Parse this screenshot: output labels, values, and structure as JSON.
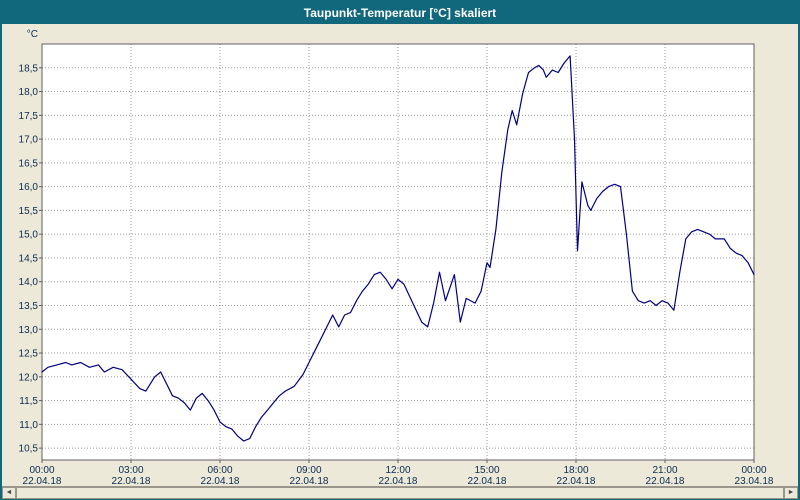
{
  "window": {
    "title": "Taupunkt-Temperatur [°C] skaliert",
    "titlebar_color": "#11687D",
    "background_color": "#ECE9D8"
  },
  "chart_data": {
    "type": "line",
    "title": "Taupunkt-Temperatur [°C] skaliert",
    "ylabel": "°C",
    "xlabel": "",
    "ylim": [
      10.25,
      19.0
    ],
    "xlim_hours": [
      0,
      24
    ],
    "grid": true,
    "legend": "none",
    "line_color": "#000080",
    "grid_color": "#999999",
    "axis_text_color": "#0D2A52",
    "plot_bg": "#FFFFFF",
    "y_ticks": [
      {
        "value": 10.5,
        "label": "10,5"
      },
      {
        "value": 11.0,
        "label": "11,0"
      },
      {
        "value": 11.5,
        "label": "11,5"
      },
      {
        "value": 12.0,
        "label": "12,0"
      },
      {
        "value": 12.5,
        "label": "12,5"
      },
      {
        "value": 13.0,
        "label": "13,0"
      },
      {
        "value": 13.5,
        "label": "13,5"
      },
      {
        "value": 14.0,
        "label": "14,0"
      },
      {
        "value": 14.5,
        "label": "14,5"
      },
      {
        "value": 15.0,
        "label": "15,0"
      },
      {
        "value": 15.5,
        "label": "15,5"
      },
      {
        "value": 16.0,
        "label": "16,0"
      },
      {
        "value": 16.5,
        "label": "16,5"
      },
      {
        "value": 17.0,
        "label": "17,0"
      },
      {
        "value": 17.5,
        "label": "17,5"
      },
      {
        "value": 18.0,
        "label": "18,0"
      },
      {
        "value": 18.5,
        "label": "18,5"
      }
    ],
    "x_ticks": [
      {
        "hour": 0,
        "time": "00:00",
        "date": "22.04.18"
      },
      {
        "hour": 3,
        "time": "03:00",
        "date": "22.04.18"
      },
      {
        "hour": 6,
        "time": "06:00",
        "date": "22.04.18"
      },
      {
        "hour": 9,
        "time": "09:00",
        "date": "22.04.18"
      },
      {
        "hour": 12,
        "time": "12:00",
        "date": "22.04.18"
      },
      {
        "hour": 15,
        "time": "15:00",
        "date": "22.04.18"
      },
      {
        "hour": 18,
        "time": "18:00",
        "date": "22.04.18"
      },
      {
        "hour": 21,
        "time": "21:00",
        "date": "22.04.18"
      },
      {
        "hour": 24,
        "time": "00:00",
        "date": "23.04.18"
      }
    ],
    "series": [
      {
        "name": "Taupunkt-Temperatur",
        "points": [
          [
            0.0,
            12.1
          ],
          [
            0.2,
            12.2
          ],
          [
            0.5,
            12.25
          ],
          [
            0.8,
            12.3
          ],
          [
            1.0,
            12.25
          ],
          [
            1.3,
            12.3
          ],
          [
            1.6,
            12.2
          ],
          [
            1.9,
            12.25
          ],
          [
            2.1,
            12.1
          ],
          [
            2.4,
            12.2
          ],
          [
            2.7,
            12.15
          ],
          [
            3.0,
            11.95
          ],
          [
            3.3,
            11.75
          ],
          [
            3.5,
            11.7
          ],
          [
            3.8,
            12.0
          ],
          [
            4.0,
            12.1
          ],
          [
            4.2,
            11.85
          ],
          [
            4.4,
            11.6
          ],
          [
            4.6,
            11.55
          ],
          [
            4.8,
            11.45
          ],
          [
            5.0,
            11.3
          ],
          [
            5.2,
            11.55
          ],
          [
            5.4,
            11.65
          ],
          [
            5.6,
            11.5
          ],
          [
            5.8,
            11.3
          ],
          [
            6.0,
            11.05
          ],
          [
            6.2,
            10.95
          ],
          [
            6.4,
            10.9
          ],
          [
            6.6,
            10.75
          ],
          [
            6.8,
            10.65
          ],
          [
            7.0,
            10.7
          ],
          [
            7.2,
            10.95
          ],
          [
            7.4,
            11.15
          ],
          [
            7.6,
            11.3
          ],
          [
            7.8,
            11.45
          ],
          [
            8.0,
            11.6
          ],
          [
            8.2,
            11.7
          ],
          [
            8.5,
            11.8
          ],
          [
            8.8,
            12.05
          ],
          [
            9.0,
            12.3
          ],
          [
            9.2,
            12.55
          ],
          [
            9.4,
            12.8
          ],
          [
            9.6,
            13.05
          ],
          [
            9.8,
            13.3
          ],
          [
            10.0,
            13.05
          ],
          [
            10.2,
            13.3
          ],
          [
            10.4,
            13.35
          ],
          [
            10.6,
            13.6
          ],
          [
            10.8,
            13.8
          ],
          [
            11.0,
            13.95
          ],
          [
            11.2,
            14.15
          ],
          [
            11.4,
            14.2
          ],
          [
            11.6,
            14.05
          ],
          [
            11.8,
            13.85
          ],
          [
            12.0,
            14.05
          ],
          [
            12.2,
            13.95
          ],
          [
            12.5,
            13.55
          ],
          [
            12.8,
            13.15
          ],
          [
            13.0,
            13.05
          ],
          [
            13.2,
            13.55
          ],
          [
            13.4,
            14.2
          ],
          [
            13.6,
            13.6
          ],
          [
            13.9,
            14.15
          ],
          [
            14.1,
            13.15
          ],
          [
            14.3,
            13.65
          ],
          [
            14.6,
            13.55
          ],
          [
            14.8,
            13.8
          ],
          [
            15.0,
            14.4
          ],
          [
            15.1,
            14.3
          ],
          [
            15.3,
            15.1
          ],
          [
            15.5,
            16.3
          ],
          [
            15.7,
            17.2
          ],
          [
            15.85,
            17.6
          ],
          [
            16.0,
            17.3
          ],
          [
            16.2,
            17.95
          ],
          [
            16.4,
            18.4
          ],
          [
            16.6,
            18.5
          ],
          [
            16.75,
            18.55
          ],
          [
            16.9,
            18.45
          ],
          [
            17.0,
            18.3
          ],
          [
            17.2,
            18.45
          ],
          [
            17.4,
            18.4
          ],
          [
            17.6,
            18.6
          ],
          [
            17.8,
            18.75
          ],
          [
            17.95,
            17.0
          ],
          [
            18.05,
            14.65
          ],
          [
            18.2,
            16.1
          ],
          [
            18.4,
            15.6
          ],
          [
            18.5,
            15.5
          ],
          [
            18.7,
            15.75
          ],
          [
            18.9,
            15.9
          ],
          [
            19.1,
            16.0
          ],
          [
            19.3,
            16.05
          ],
          [
            19.5,
            16.0
          ],
          [
            19.7,
            15.0
          ],
          [
            19.9,
            13.8
          ],
          [
            20.1,
            13.6
          ],
          [
            20.3,
            13.55
          ],
          [
            20.5,
            13.6
          ],
          [
            20.7,
            13.5
          ],
          [
            20.9,
            13.6
          ],
          [
            21.1,
            13.55
          ],
          [
            21.3,
            13.4
          ],
          [
            21.5,
            14.2
          ],
          [
            21.7,
            14.9
          ],
          [
            21.9,
            15.05
          ],
          [
            22.1,
            15.1
          ],
          [
            22.3,
            15.05
          ],
          [
            22.5,
            15.0
          ],
          [
            22.7,
            14.9
          ],
          [
            23.0,
            14.9
          ],
          [
            23.2,
            14.7
          ],
          [
            23.4,
            14.6
          ],
          [
            23.6,
            14.55
          ],
          [
            23.8,
            14.4
          ],
          [
            24.0,
            14.15
          ]
        ]
      }
    ]
  },
  "scrollbar": {
    "left_arrow": "◄",
    "right_arrow": "►"
  }
}
